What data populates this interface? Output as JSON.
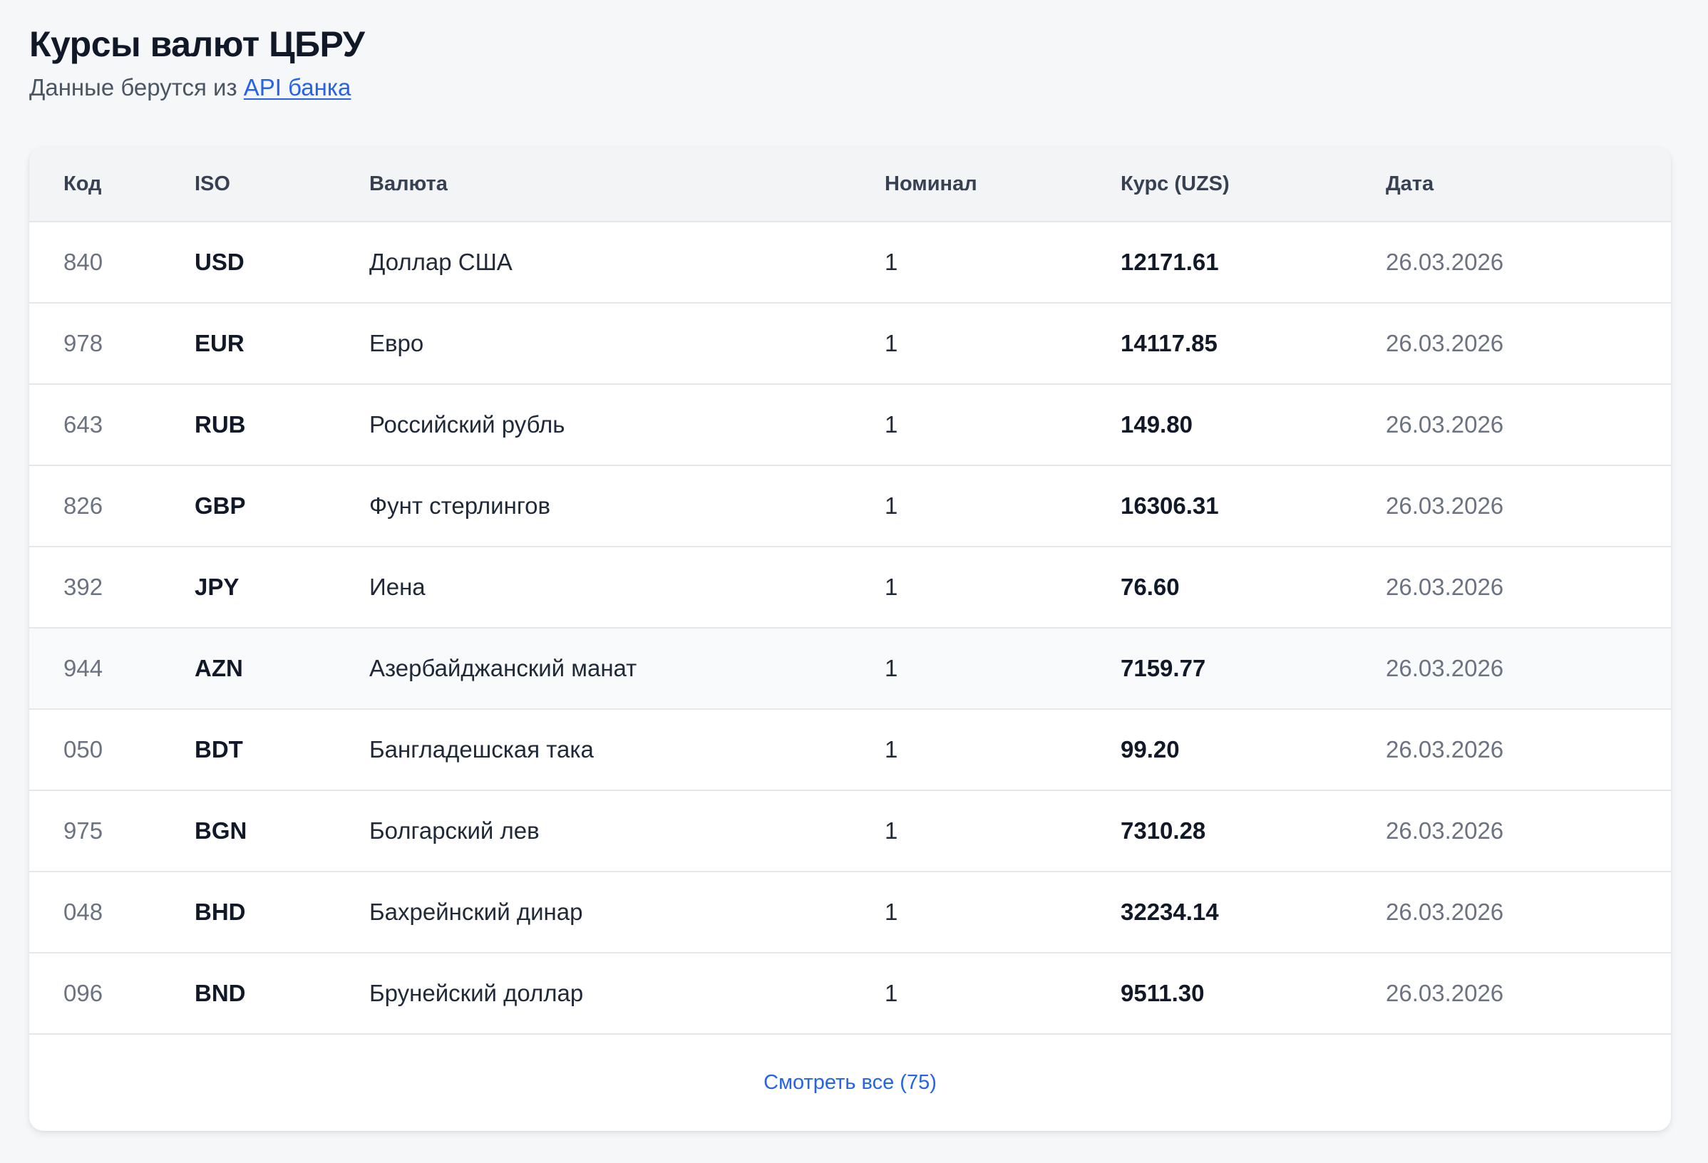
{
  "header": {
    "title": "Курсы валют ЦБРУ",
    "subtitle_prefix": "Данные берутся из ",
    "subtitle_link": "API банка"
  },
  "table": {
    "columns": [
      "Код",
      "ISO",
      "Валюта",
      "Номинал",
      "Курс (UZS)",
      "Дата"
    ],
    "rows": [
      {
        "code": "840",
        "iso": "USD",
        "name": "Доллар США",
        "nominal": "1",
        "rate": "12171.61",
        "date": "26.03.2026"
      },
      {
        "code": "978",
        "iso": "EUR",
        "name": "Евро",
        "nominal": "1",
        "rate": "14117.85",
        "date": "26.03.2026"
      },
      {
        "code": "643",
        "iso": "RUB",
        "name": "Российский рубль",
        "nominal": "1",
        "rate": "149.80",
        "date": "26.03.2026"
      },
      {
        "code": "826",
        "iso": "GBP",
        "name": "Фунт стерлингов",
        "nominal": "1",
        "rate": "16306.31",
        "date": "26.03.2026"
      },
      {
        "code": "392",
        "iso": "JPY",
        "name": "Иена",
        "nominal": "1",
        "rate": "76.60",
        "date": "26.03.2026"
      },
      {
        "code": "944",
        "iso": "AZN",
        "name": "Азербайджанский манат",
        "nominal": "1",
        "rate": "7159.77",
        "date": "26.03.2026"
      },
      {
        "code": "050",
        "iso": "BDT",
        "name": "Бангладешская така",
        "nominal": "1",
        "rate": "99.20",
        "date": "26.03.2026"
      },
      {
        "code": "975",
        "iso": "BGN",
        "name": "Болгарский лев",
        "nominal": "1",
        "rate": "7310.28",
        "date": "26.03.2026"
      },
      {
        "code": "048",
        "iso": "BHD",
        "name": "Бахрейнский динар",
        "nominal": "1",
        "rate": "32234.14",
        "date": "26.03.2026"
      },
      {
        "code": "096",
        "iso": "BND",
        "name": "Брунейский доллар",
        "nominal": "1",
        "rate": "9511.30",
        "date": "26.03.2026"
      }
    ]
  },
  "footer": {
    "view_all_label": "Смотреть все (75)"
  },
  "colors": {
    "accent": "#2563eb",
    "background": "#f6f7f9",
    "hover_row": "#f9fafb"
  }
}
